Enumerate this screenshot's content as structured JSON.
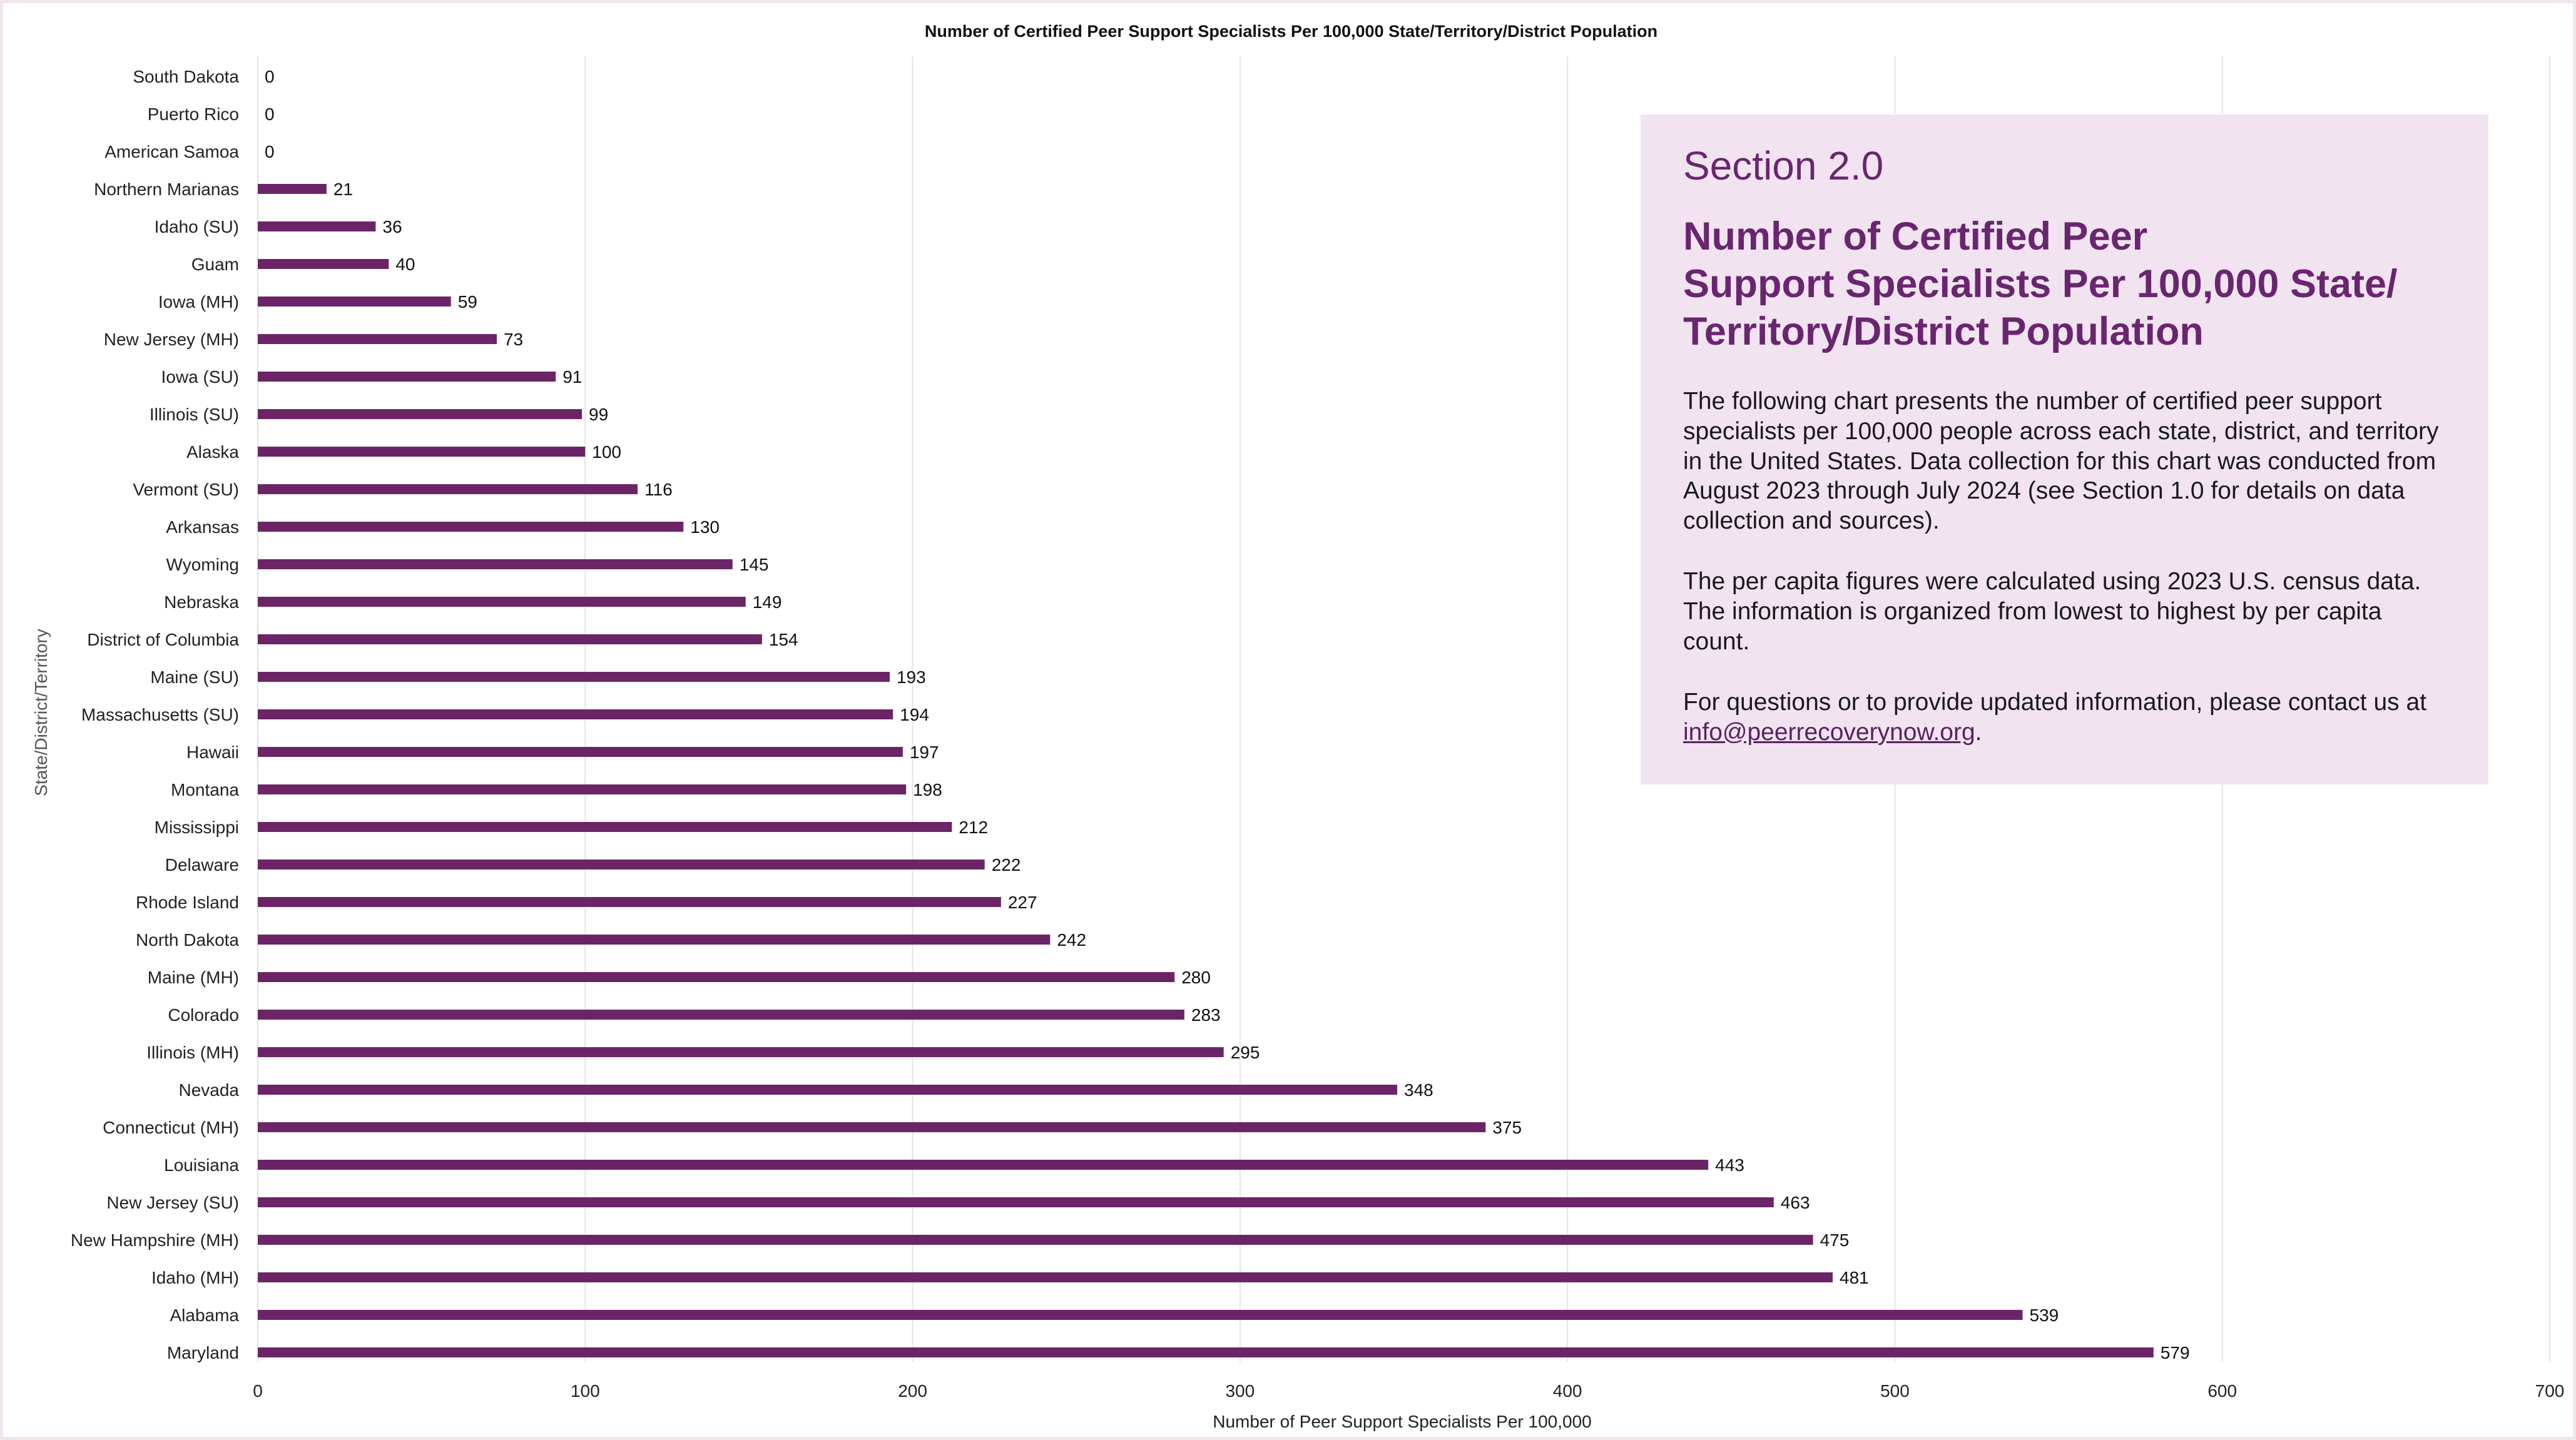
{
  "colors": {
    "bar": "#6b2566",
    "accent": "#6a2570",
    "info_box_bg": "#f1e4f0",
    "grid": "#e4e4e4",
    "axis_text": "#222222"
  },
  "chart_data": {
    "type": "bar",
    "orientation": "horizontal",
    "title": "Number of Certified Peer Support Specialists Per 100,000 State/Territory/District Population",
    "xlabel": "Number of Peer Support Specialists Per 100,000",
    "ylabel": "State/District/Territory",
    "xlim": [
      0,
      700
    ],
    "x_ticks": [
      0,
      100,
      200,
      300,
      400,
      500,
      600,
      700
    ],
    "grid": "vertical",
    "legend": "none",
    "data_labels": true,
    "categories": [
      "South Dakota",
      "Puerto Rico",
      "American Samoa",
      "Northern Marianas",
      "Idaho (SU)",
      "Guam",
      "Iowa (MH)",
      "New Jersey (MH)",
      "Iowa (SU)",
      "Illinois (SU)",
      "Alaska",
      "Vermont (SU)",
      "Arkansas",
      "Wyoming",
      "Nebraska",
      "District of Columbia",
      "Maine (SU)",
      "Massachusetts (SU)",
      "Hawaii",
      "Montana",
      "Mississippi",
      "Delaware",
      "Rhode Island",
      "North Dakota",
      "Maine (MH)",
      "Colorado",
      "Illinois (MH)",
      "Nevada",
      "Connecticut (MH)",
      "Louisiana",
      "New Jersey (SU)",
      "New Hampshire (MH)",
      "Idaho (MH)",
      "Alabama",
      "Maryland"
    ],
    "values": [
      0,
      0,
      0,
      21,
      36,
      40,
      59,
      73,
      91,
      99,
      100,
      116,
      130,
      145,
      149,
      154,
      193,
      194,
      197,
      198,
      212,
      222,
      227,
      242,
      280,
      283,
      295,
      348,
      375,
      443,
      463,
      475,
      481,
      539,
      579
    ]
  },
  "info_box": {
    "section": "Section 2.0",
    "heading_lines": [
      "Number of Certified Peer",
      "Support Specialists Per 100,000 State/",
      "Territory/District Population"
    ],
    "paragraph_1": "The following chart presents the number of certified peer support specialists per 100,000 people across each state, district, and territory in the United States. Data collection for this chart was conducted from August 2023 through July 2024 (see Section 1.0 for details on data collection and sources).",
    "paragraph_2": "The per capita figures were calculated using 2023 U.S. census data. The information is organized from lowest to highest by per capita count.",
    "paragraph_3_prefix": "For questions or to provide updated information, please contact us at ",
    "contact_email": "info@peerrecoverynow.org",
    "paragraph_3_suffix": "."
  }
}
